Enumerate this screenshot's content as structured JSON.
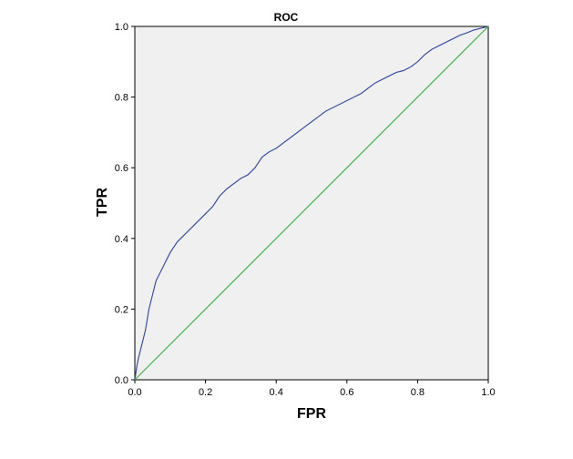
{
  "chart_data": {
    "type": "line",
    "title": "ROC",
    "xlabel": "FPR",
    "ylabel": "TPR",
    "xlim": [
      0,
      1
    ],
    "ylim": [
      0,
      1
    ],
    "x_ticks": [
      "0.0",
      "0.2",
      "0.4",
      "0.6",
      "0.8",
      "1.0"
    ],
    "y_ticks": [
      "0.0",
      "0.2",
      "0.4",
      "0.6",
      "0.8",
      "1.0"
    ],
    "grid": false,
    "legend": "none",
    "background_color": "#f0f0f0",
    "series": [
      {
        "color": "#3b4fa0",
        "x": [
          0,
          0.003,
          0.006,
          0.01,
          0.015,
          0.02,
          0.025,
          0.03,
          0.035,
          0.04,
          0.045,
          0.05,
          0.055,
          0.06,
          0.07,
          0.08,
          0.09,
          0.1,
          0.12,
          0.14,
          0.16,
          0.18,
          0.2,
          0.22,
          0.24,
          0.26,
          0.28,
          0.3,
          0.32,
          0.34,
          0.36,
          0.38,
          0.4,
          0.42,
          0.44,
          0.46,
          0.48,
          0.5,
          0.52,
          0.54,
          0.56,
          0.58,
          0.6,
          0.62,
          0.64,
          0.66,
          0.68,
          0.7,
          0.72,
          0.74,
          0.76,
          0.78,
          0.8,
          0.82,
          0.84,
          0.86,
          0.88,
          0.9,
          0.92,
          0.94,
          0.96,
          0.98,
          1.0
        ],
        "y": [
          0,
          0.02,
          0.04,
          0.06,
          0.08,
          0.1,
          0.12,
          0.14,
          0.17,
          0.2,
          0.22,
          0.24,
          0.26,
          0.28,
          0.3,
          0.32,
          0.34,
          0.36,
          0.39,
          0.41,
          0.43,
          0.45,
          0.47,
          0.49,
          0.52,
          0.54,
          0.555,
          0.57,
          0.58,
          0.6,
          0.63,
          0.645,
          0.655,
          0.67,
          0.685,
          0.7,
          0.715,
          0.73,
          0.745,
          0.76,
          0.77,
          0.78,
          0.79,
          0.8,
          0.81,
          0.825,
          0.84,
          0.85,
          0.86,
          0.87,
          0.875,
          0.885,
          0.9,
          0.92,
          0.935,
          0.945,
          0.955,
          0.965,
          0.975,
          0.982,
          0.99,
          0.995,
          1.0
        ]
      },
      {
        "color": "#3cb34a",
        "x": [
          0,
          1
        ],
        "y": [
          0,
          1
        ]
      }
    ]
  }
}
